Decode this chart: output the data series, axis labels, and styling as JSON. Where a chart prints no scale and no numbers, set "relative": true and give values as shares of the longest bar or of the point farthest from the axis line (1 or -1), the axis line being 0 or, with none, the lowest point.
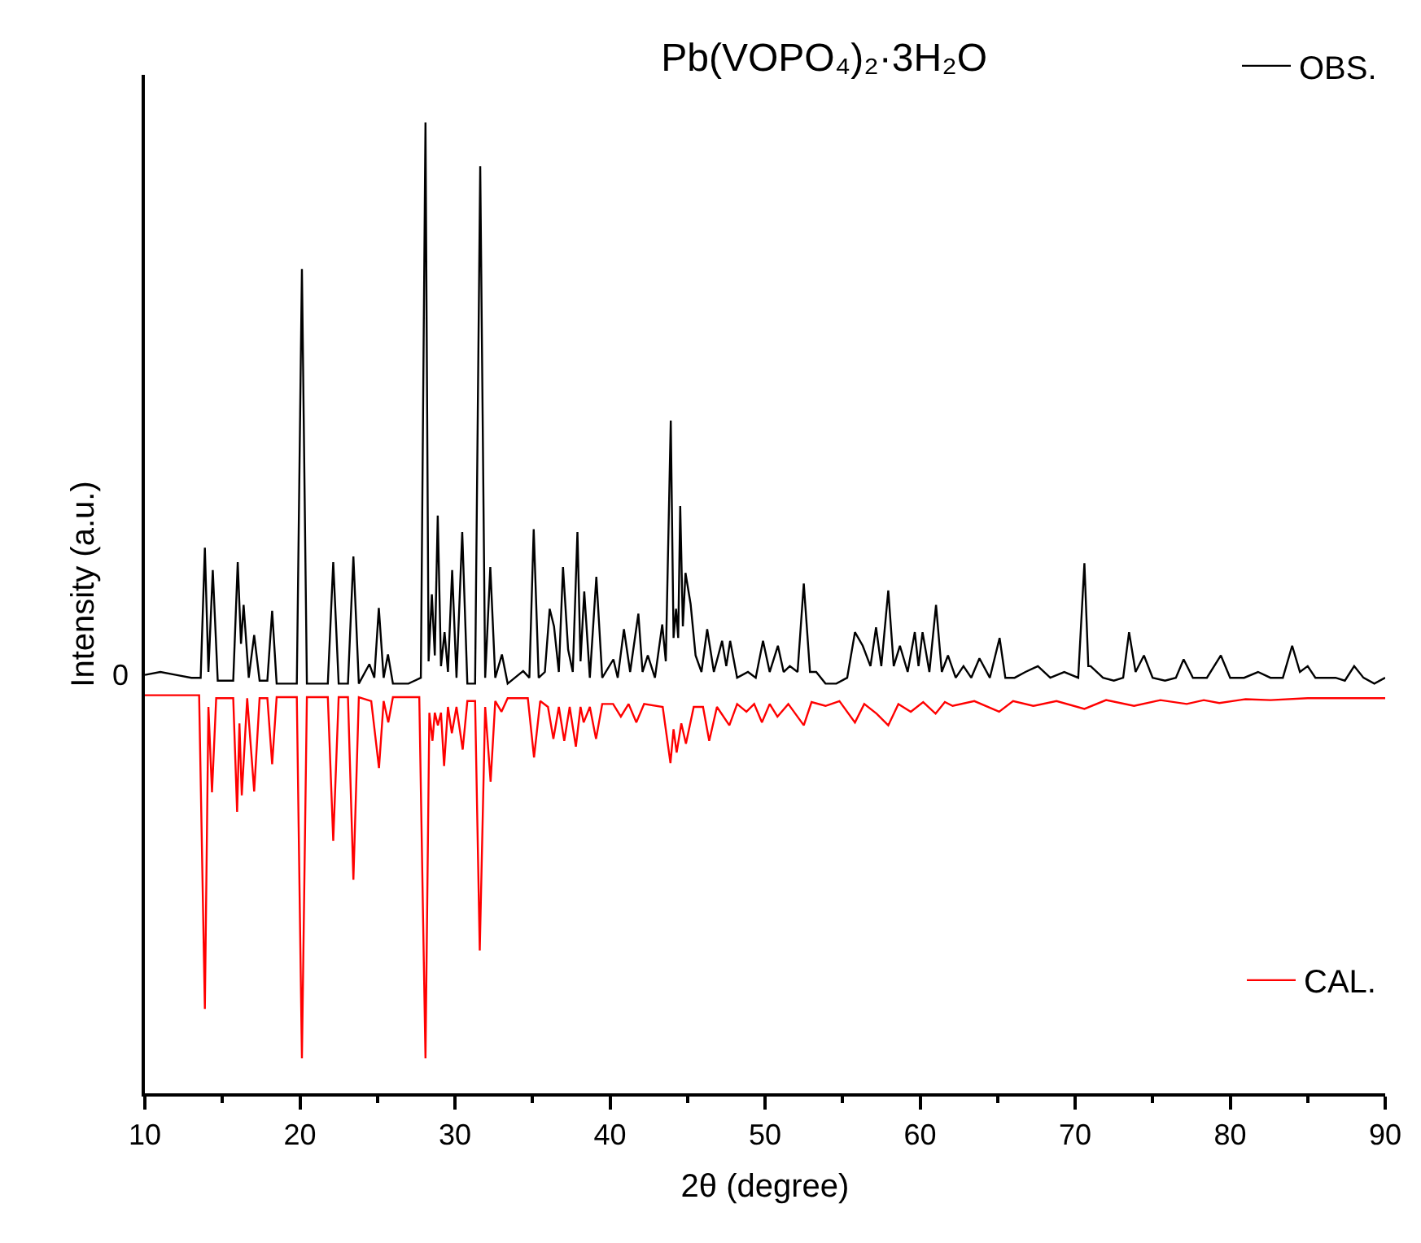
{
  "chart_data": {
    "type": "line",
    "title": "Pb(VOPO₄)₂·3H₂O",
    "xlabel": "2θ (degree)",
    "ylabel": "Intensity (a.u.)",
    "relative": true,
    "legend": "right",
    "xlim": [
      10,
      90
    ],
    "xticks": [
      10,
      20,
      30,
      40,
      50,
      60,
      70,
      80,
      90
    ],
    "annotations": [
      "0"
    ],
    "series": [
      {
        "name": "OBS.",
        "color": "#000000",
        "x": [
          10,
          11,
          12,
          13,
          13.6,
          13.87,
          14.1,
          14.38,
          14.7,
          15.7,
          15.99,
          16.2,
          16.37,
          16.7,
          17.05,
          17.4,
          17.9,
          18.21,
          18.5,
          19.8,
          20.13,
          20.45,
          21.8,
          22.15,
          22.5,
          23.1,
          23.45,
          23.8,
          24.48,
          24.8,
          25.09,
          25.4,
          25.68,
          26.0,
          27.0,
          27.8,
          28.1,
          28.3,
          28.51,
          28.7,
          28.89,
          29.1,
          29.33,
          29.55,
          29.82,
          30.1,
          30.47,
          30.8,
          31.3,
          31.63,
          31.95,
          32.28,
          32.6,
          33.03,
          33.4,
          34.4,
          34.8,
          35.08,
          35.4,
          35.8,
          36.11,
          36.39,
          36.7,
          36.97,
          37.3,
          37.6,
          37.9,
          38.1,
          38.34,
          38.7,
          39.12,
          39.5,
          40.22,
          40.5,
          40.9,
          41.3,
          41.83,
          42.1,
          42.44,
          42.9,
          43.37,
          43.6,
          43.92,
          44.1,
          44.26,
          44.4,
          44.53,
          44.7,
          44.87,
          45.2,
          45.52,
          45.9,
          46.27,
          46.7,
          47.23,
          47.5,
          47.75,
          48.2,
          48.9,
          49.4,
          49.87,
          50.3,
          50.83,
          51.2,
          51.6,
          52.1,
          52.5,
          52.9,
          53.3,
          53.9,
          54.6,
          55.3,
          55.8,
          56.3,
          56.8,
          57.16,
          57.5,
          57.95,
          58.3,
          58.7,
          59.2,
          59.66,
          59.9,
          60.16,
          60.6,
          61.03,
          61.4,
          61.8,
          62.3,
          62.8,
          63.3,
          63.83,
          64.5,
          65.13,
          65.5,
          66.1,
          66.8,
          67.6,
          68.4,
          69.3,
          70.2,
          70.6,
          70.85,
          71.0,
          71.8,
          72.5,
          73.1,
          73.48,
          73.9,
          74.44,
          75.0,
          75.8,
          76.5,
          77.0,
          77.6,
          78.5,
          79.4,
          80.0,
          80.9,
          81.8,
          82.6,
          83.4,
          84.0,
          84.5,
          85.0,
          85.5,
          86.1,
          86.8,
          87.4,
          88.0,
          88.6,
          89.3,
          90
        ],
        "values": [
          0.431,
          0.434,
          0.431,
          0.428,
          0.428,
          0.562,
          0.434,
          0.539,
          0.425,
          0.425,
          0.547,
          0.463,
          0.503,
          0.428,
          0.472,
          0.425,
          0.425,
          0.497,
          0.422,
          0.422,
          0.849,
          0.422,
          0.422,
          0.547,
          0.422,
          0.422,
          0.553,
          0.422,
          0.442,
          0.428,
          0.5,
          0.428,
          0.452,
          0.422,
          0.422,
          0.428,
          1.0,
          0.445,
          0.514,
          0.451,
          0.595,
          0.44,
          0.475,
          0.434,
          0.539,
          0.428,
          0.578,
          0.422,
          0.422,
          0.955,
          0.428,
          0.542,
          0.428,
          0.452,
          0.422,
          0.435,
          0.428,
          0.581,
          0.428,
          0.434,
          0.499,
          0.481,
          0.434,
          0.542,
          0.457,
          0.434,
          0.578,
          0.445,
          0.517,
          0.428,
          0.532,
          0.428,
          0.447,
          0.428,
          0.478,
          0.434,
          0.494,
          0.434,
          0.451,
          0.428,
          0.483,
          0.445,
          0.693,
          0.469,
          0.499,
          0.469,
          0.605,
          0.481,
          0.536,
          0.504,
          0.451,
          0.434,
          0.478,
          0.434,
          0.466,
          0.44,
          0.466,
          0.428,
          0.434,
          0.428,
          0.466,
          0.434,
          0.461,
          0.434,
          0.44,
          0.434,
          0.525,
          0.434,
          0.434,
          0.422,
          0.422,
          0.428,
          0.475,
          0.461,
          0.44,
          0.48,
          0.44,
          0.518,
          0.44,
          0.461,
          0.434,
          0.475,
          0.44,
          0.475,
          0.434,
          0.503,
          0.434,
          0.451,
          0.428,
          0.44,
          0.428,
          0.448,
          0.428,
          0.469,
          0.428,
          0.428,
          0.434,
          0.44,
          0.428,
          0.434,
          0.428,
          0.546,
          0.44,
          0.44,
          0.428,
          0.425,
          0.428,
          0.475,
          0.434,
          0.451,
          0.428,
          0.425,
          0.428,
          0.447,
          0.428,
          0.428,
          0.451,
          0.428,
          0.428,
          0.434,
          0.428,
          0.428,
          0.461,
          0.434,
          0.44,
          0.428,
          0.428,
          0.428,
          0.425,
          0.44,
          0.428,
          0.422,
          0.428
        ]
      },
      {
        "name": "CAL.",
        "color": "#ff0000",
        "x": [
          10,
          13.5,
          13.87,
          14.1,
          14.33,
          14.6,
          15.7,
          15.95,
          16.1,
          16.25,
          16.6,
          17.05,
          17.4,
          17.9,
          18.21,
          18.5,
          19.8,
          20.13,
          20.45,
          21.8,
          22.15,
          22.5,
          23.1,
          23.45,
          23.8,
          24.6,
          25.1,
          25.4,
          25.7,
          26.0,
          27.7,
          28.1,
          28.35,
          28.55,
          28.7,
          28.9,
          29.1,
          29.3,
          29.55,
          29.8,
          30.1,
          30.5,
          30.8,
          31.3,
          31.6,
          31.95,
          32.3,
          32.6,
          33.0,
          33.4,
          34.7,
          35.1,
          35.5,
          36.0,
          36.35,
          36.7,
          37.05,
          37.4,
          37.8,
          38.1,
          38.3,
          38.7,
          39.1,
          39.5,
          40.2,
          40.7,
          41.2,
          41.7,
          42.2,
          43.4,
          43.9,
          44.1,
          44.3,
          44.6,
          44.9,
          45.4,
          46.0,
          46.4,
          46.9,
          47.7,
          48.2,
          48.8,
          49.3,
          49.8,
          50.3,
          50.8,
          51.5,
          52.5,
          53.0,
          53.9,
          54.8,
          55.8,
          56.4,
          57.2,
          57.95,
          58.6,
          59.4,
          60.2,
          61.0,
          61.6,
          62.1,
          63.5,
          65.1,
          66.0,
          67.3,
          68.8,
          70.6,
          72.0,
          73.8,
          75.5,
          77.2,
          78.3,
          79.3,
          81.0,
          82.6,
          85.0,
          88.0,
          90
        ],
        "values": [
          0.41,
          0.41,
          0.087,
          0.398,
          0.31,
          0.407,
          0.407,
          0.29,
          0.381,
          0.307,
          0.407,
          0.311,
          0.407,
          0.407,
          0.339,
          0.408,
          0.408,
          0.036,
          0.408,
          0.408,
          0.26,
          0.408,
          0.408,
          0.22,
          0.408,
          0.404,
          0.335,
          0.404,
          0.382,
          0.408,
          0.408,
          0.036,
          0.392,
          0.363,
          0.392,
          0.379,
          0.392,
          0.337,
          0.398,
          0.371,
          0.398,
          0.354,
          0.404,
          0.404,
          0.147,
          0.398,
          0.321,
          0.404,
          0.393,
          0.407,
          0.407,
          0.346,
          0.404,
          0.398,
          0.365,
          0.398,
          0.363,
          0.398,
          0.357,
          0.398,
          0.382,
          0.398,
          0.365,
          0.401,
          0.401,
          0.388,
          0.401,
          0.382,
          0.401,
          0.398,
          0.34,
          0.375,
          0.351,
          0.381,
          0.36,
          0.398,
          0.398,
          0.363,
          0.398,
          0.379,
          0.401,
          0.393,
          0.401,
          0.382,
          0.401,
          0.388,
          0.401,
          0.379,
          0.403,
          0.399,
          0.404,
          0.382,
          0.401,
          0.391,
          0.379,
          0.401,
          0.393,
          0.403,
          0.391,
          0.403,
          0.399,
          0.404,
          0.393,
          0.404,
          0.399,
          0.404,
          0.396,
          0.405,
          0.399,
          0.405,
          0.401,
          0.405,
          0.402,
          0.406,
          0.405,
          0.407,
          0.407,
          0.407
        ]
      }
    ]
  }
}
